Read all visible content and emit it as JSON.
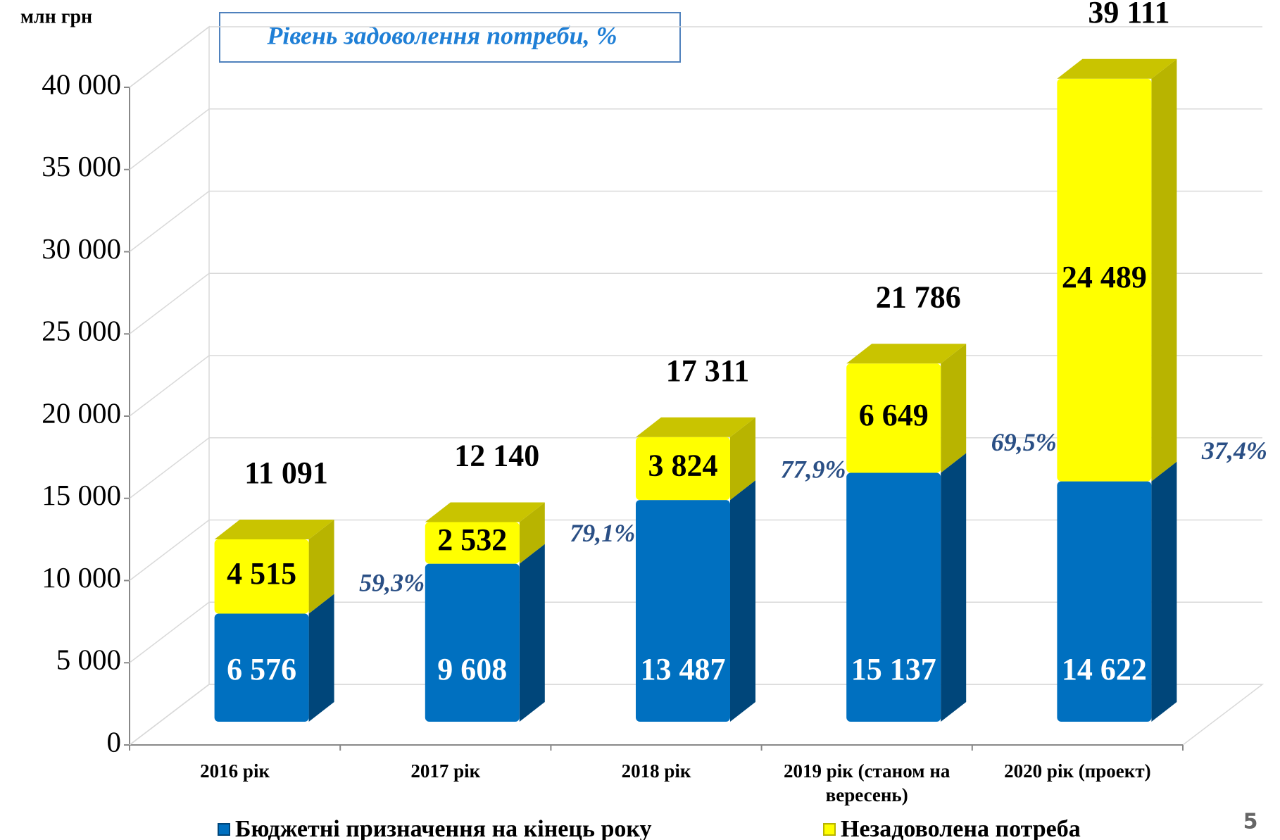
{
  "chart_data": {
    "type": "stacked_bar_3d",
    "y_label": "млн грн",
    "annotation": "Рівень задоволення потреби, %",
    "page_number": "5",
    "categories": [
      "2016 рік",
      "2017 рік",
      "2018 рік",
      "2019 рік (станом на вересень)",
      "2020 рік (проект)"
    ],
    "series": [
      {
        "name": "Бюджетні призначення на кінець року",
        "color": "#0070c0",
        "values": [
          6576,
          9608,
          13487,
          15137,
          14622
        ],
        "value_labels": [
          "6 576",
          "9 608",
          "13 487",
          "15 137",
          "14 622"
        ]
      },
      {
        "name": "Незадоволена потреба",
        "color": "#ffff00",
        "values": [
          4515,
          2532,
          3824,
          6649,
          24489
        ],
        "value_labels": [
          "4 515",
          "2 532",
          "3 824",
          "6 649",
          "24 489"
        ]
      }
    ],
    "totals": [
      11091,
      12140,
      17311,
      21786,
      39111
    ],
    "total_labels": [
      "11 091",
      "12 140",
      "17 311",
      "21 786",
      "39 111"
    ],
    "shares": [
      59.3,
      79.1,
      77.9,
      69.5,
      37.4
    ],
    "share_labels": [
      "59,3%",
      "79,1%",
      "77,9%",
      "69,5%",
      "37,4%"
    ],
    "ylim": [
      0,
      40000
    ],
    "yticks": [
      0,
      {
        "value": 5000,
        "label": "5 000"
      },
      {
        "value": 10000,
        "label": "10 000"
      },
      {
        "value": 15000,
        "label": "15 000"
      },
      {
        "value": 20000,
        "label": "20 000"
      },
      {
        "value": 25000,
        "label": "25 000"
      },
      {
        "value": 30000,
        "label": "30 000"
      },
      {
        "value": 35000,
        "label": "35 000"
      },
      {
        "value": 40000,
        "label": "40 000"
      }
    ],
    "grid": true
  }
}
